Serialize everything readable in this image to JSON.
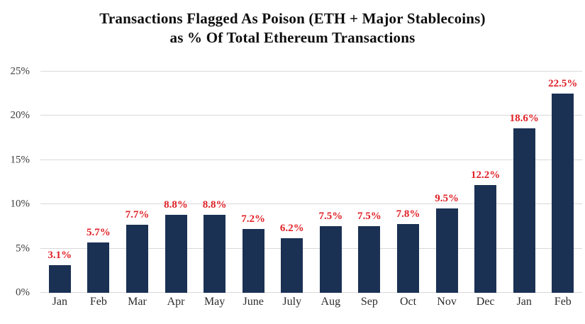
{
  "chart": {
    "title_line1": "Transactions Flagged As Poison (ETH + Major Stablecoins)",
    "title_line2": "as % Of Total Ethereum Transactions"
  },
  "chart_data": {
    "type": "bar",
    "title": "Transactions Flagged As Poison (ETH + Major Stablecoins) as % Of Total Ethereum Transactions",
    "categories": [
      "Jan",
      "Feb",
      "Mar",
      "Apr",
      "May",
      "June",
      "July",
      "Aug",
      "Sep",
      "Oct",
      "Nov",
      "Dec",
      "Jan",
      "Feb"
    ],
    "values": [
      3.1,
      5.7,
      7.7,
      8.8,
      8.8,
      7.2,
      6.2,
      7.5,
      7.5,
      7.8,
      9.5,
      12.2,
      18.6,
      22.5
    ],
    "data_labels": [
      "3.1%",
      "5.7%",
      "7.7%",
      "8.8%",
      "8.8%",
      "7.2%",
      "6.2%",
      "7.5%",
      "7.5%",
      "7.8%",
      "9.5%",
      "12.2%",
      "18.6%",
      "22.5%"
    ],
    "xlabel": "",
    "ylabel": "",
    "ylim": [
      0,
      25
    ],
    "y_ticks": [
      "0%",
      "5%",
      "10%",
      "15%",
      "20%",
      "25%"
    ],
    "grid": "horizontal",
    "legend": "none",
    "colors": {
      "bar": "#1a3154",
      "data_label": "#e02026",
      "gridline": "#d9d9d9",
      "axis_text": "#3d3d3d",
      "title_text": "#0d0d0d"
    }
  }
}
